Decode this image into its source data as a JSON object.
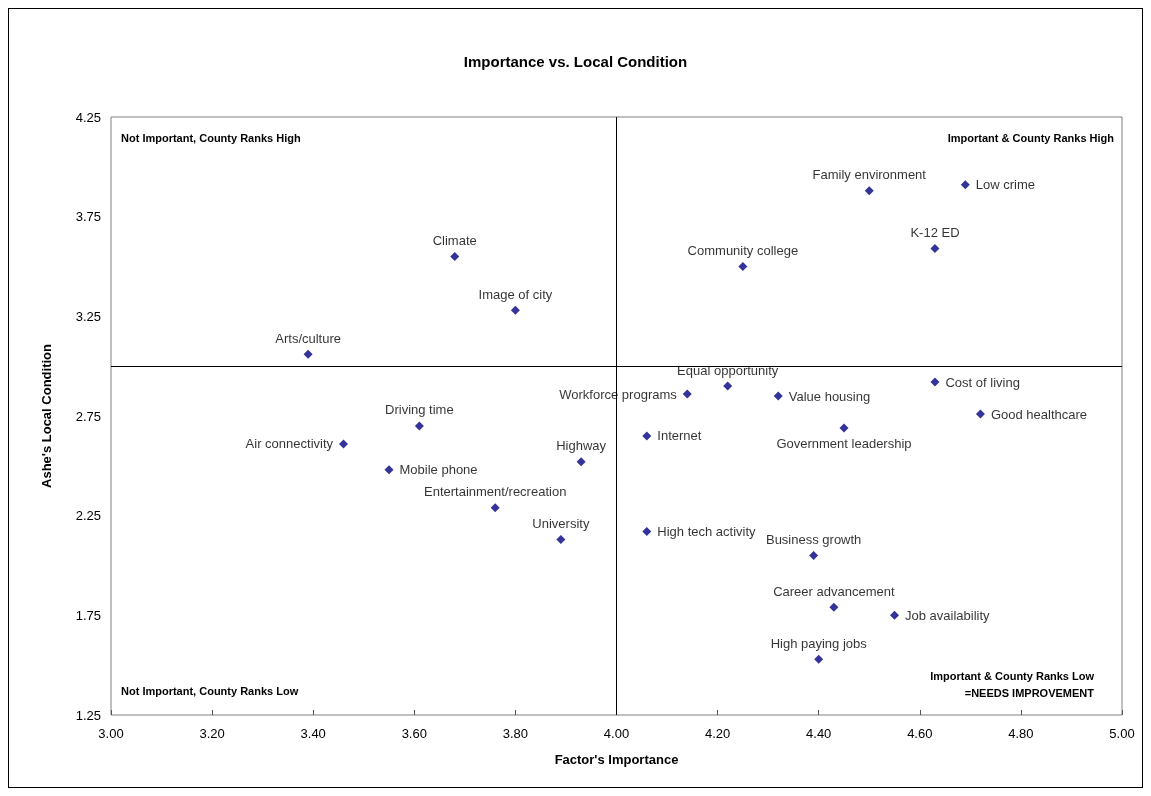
{
  "chart_data": {
    "type": "scatter",
    "title": "Importance vs. Local Condition",
    "xlabel": "Factor's Importance",
    "ylabel": "Ashe's Local Condition",
    "marker": "diamond",
    "legend": false,
    "grid": false,
    "xlim": [
      3,
      5
    ],
    "xticks": [
      {
        "value": 3,
        "label": "3.00"
      },
      {
        "value": 3.2,
        "label": "3.20"
      },
      {
        "value": 3.4,
        "label": "3.40"
      },
      {
        "value": 3.6,
        "label": "3.60"
      },
      {
        "value": 3.8,
        "label": "3.80"
      },
      {
        "value": 4,
        "label": "4.00"
      },
      {
        "value": 4.2,
        "label": "4.20"
      },
      {
        "value": 4.4,
        "label": "4.40"
      },
      {
        "value": 4.6,
        "label": "4.60"
      },
      {
        "value": 4.8,
        "label": "4.80"
      },
      {
        "value": 5,
        "label": "5.00"
      }
    ],
    "ylim": [
      1.25,
      4.25
    ],
    "yticks": [
      1.25,
      1.75,
      2.25,
      2.75,
      3.25,
      3.75,
      4.25
    ],
    "ref_lines": [
      {
        "axis": "x",
        "value": 4,
        "color": "#000000"
      },
      {
        "axis": "y",
        "value": 3,
        "color": "#000000"
      }
    ],
    "annotations": [
      "Not Important, County Ranks High",
      "Important & County Ranks High",
      "Not Important, County Ranks Low",
      "Important & County Ranks Low\n=NEEDS IMPROVEMENT"
    ],
    "series": [
      {
        "name": "Climate",
        "color": "#000080",
        "x": [
          3.68
        ],
        "values": [
          3.55
        ]
      },
      {
        "name": "Image of city",
        "color": "#000080",
        "x": [
          3.8
        ],
        "values": [
          3.28
        ]
      },
      {
        "name": "Arts/culture",
        "color": "#000080",
        "x": [
          3.39
        ],
        "values": [
          3.06
        ]
      },
      {
        "name": "Driving time",
        "color": "#000080",
        "x": [
          3.61
        ],
        "values": [
          2.7
        ]
      },
      {
        "name": "Air connectivity",
        "color": "#000080",
        "x": [
          3.46
        ],
        "values": [
          2.61
        ]
      },
      {
        "name": "Mobile phone",
        "color": "#000080",
        "x": [
          3.55
        ],
        "values": [
          2.48
        ]
      },
      {
        "name": "Highway",
        "color": "#000080",
        "x": [
          3.93
        ],
        "values": [
          2.52
        ]
      },
      {
        "name": "Entertainment/recreation",
        "color": "#000080",
        "x": [
          3.76
        ],
        "values": [
          2.29
        ]
      },
      {
        "name": "University",
        "color": "#000080",
        "x": [
          3.89
        ],
        "values": [
          2.13
        ]
      },
      {
        "name": "Family environment",
        "color": "#000080",
        "x": [
          4.5
        ],
        "values": [
          3.88
        ]
      },
      {
        "name": "Low crime",
        "color": "#000080",
        "x": [
          4.69
        ],
        "values": [
          3.91
        ]
      },
      {
        "name": "K-12 ED",
        "color": "#000080",
        "x": [
          4.63
        ],
        "values": [
          3.59
        ]
      },
      {
        "name": "Community college",
        "color": "#000080",
        "x": [
          4.25
        ],
        "values": [
          3.5
        ]
      },
      {
        "name": "Workforce programs",
        "color": "#000080",
        "x": [
          4.14
        ],
        "values": [
          2.86
        ]
      },
      {
        "name": "Equal opportunity",
        "color": "#000080",
        "x": [
          4.22
        ],
        "values": [
          2.9
        ]
      },
      {
        "name": "Value housing",
        "color": "#000080",
        "x": [
          4.32
        ],
        "values": [
          2.85
        ]
      },
      {
        "name": "Cost of living",
        "color": "#000080",
        "x": [
          4.63
        ],
        "values": [
          2.92
        ]
      },
      {
        "name": "Good healthcare",
        "color": "#000080",
        "x": [
          4.72
        ],
        "values": [
          2.76
        ]
      },
      {
        "name": "Government leadership",
        "color": "#000080",
        "x": [
          4.45
        ],
        "values": [
          2.69
        ]
      },
      {
        "name": "Internet",
        "color": "#000080",
        "x": [
          4.06
        ],
        "values": [
          2.65
        ]
      },
      {
        "name": "High tech activity",
        "color": "#000080",
        "x": [
          4.06
        ],
        "values": [
          2.17
        ]
      },
      {
        "name": "Business growth",
        "color": "#000080",
        "x": [
          4.39
        ],
        "values": [
          2.05
        ]
      },
      {
        "name": "Career advancement",
        "color": "#000080",
        "x": [
          4.43
        ],
        "values": [
          1.79
        ]
      },
      {
        "name": "Job availability",
        "color": "#000080",
        "x": [
          4.55
        ],
        "values": [
          1.75
        ]
      },
      {
        "name": "High paying jobs",
        "color": "#000080",
        "x": [
          4.4
        ],
        "values": [
          1.53
        ]
      }
    ]
  }
}
